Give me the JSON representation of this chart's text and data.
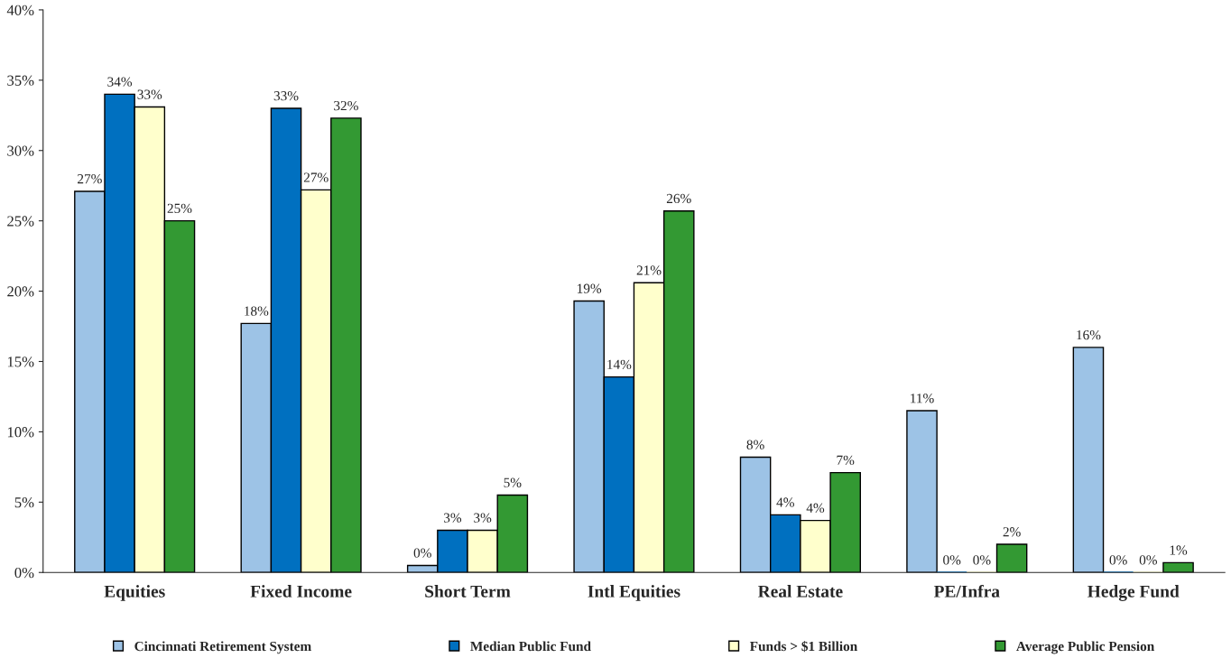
{
  "chart_data": {
    "type": "bar",
    "categories": [
      "Equities",
      "Fixed Income",
      "Short Term",
      "Intl Equities",
      "Real Estate",
      "PE/Infra",
      "Hedge Fund"
    ],
    "series": [
      {
        "name": "Cincinnati Retirement System",
        "color": "#9dc3e6",
        "values": [
          27.1,
          17.7,
          0.5,
          19.3,
          8.2,
          11.5,
          16.0
        ],
        "value_labels": [
          "27%",
          "18%",
          "0%",
          "19%",
          "8%",
          "11%",
          "16%"
        ]
      },
      {
        "name": "Median Public Fund",
        "color": "#0070c0",
        "values": [
          34.0,
          33.0,
          3.0,
          13.9,
          4.1,
          0,
          0
        ],
        "value_labels": [
          "34%",
          "33%",
          "3%",
          "14%",
          "4%",
          "0%",
          "0%"
        ]
      },
      {
        "name": "Funds > $1 Billion",
        "color": "#ffffcc",
        "values": [
          33.1,
          27.2,
          3.0,
          20.6,
          3.7,
          0,
          0
        ],
        "value_labels": [
          "33%",
          "27%",
          "3%",
          "21%",
          "4%",
          "0%",
          "0%"
        ]
      },
      {
        "name": "Average Public Pension",
        "color": "#339933",
        "values": [
          25.0,
          32.3,
          5.5,
          25.7,
          7.1,
          2.0,
          0.7
        ],
        "value_labels": [
          "25%",
          "32%",
          "5%",
          "26%",
          "7%",
          "2%",
          "1%"
        ]
      }
    ],
    "ylim": [
      0,
      40
    ],
    "yticks": [
      {
        "value": 0,
        "label": "0%"
      },
      {
        "value": 5,
        "label": "5%"
      },
      {
        "value": 10,
        "label": "10%"
      },
      {
        "value": 15,
        "label": "15%"
      },
      {
        "value": 20,
        "label": "20%"
      },
      {
        "value": 25,
        "label": "25%"
      },
      {
        "value": 30,
        "label": "30%"
      },
      {
        "value": 35,
        "label": "35%"
      },
      {
        "value": 40,
        "label": "40%"
      }
    ],
    "grid": false,
    "legend": "bottom"
  }
}
